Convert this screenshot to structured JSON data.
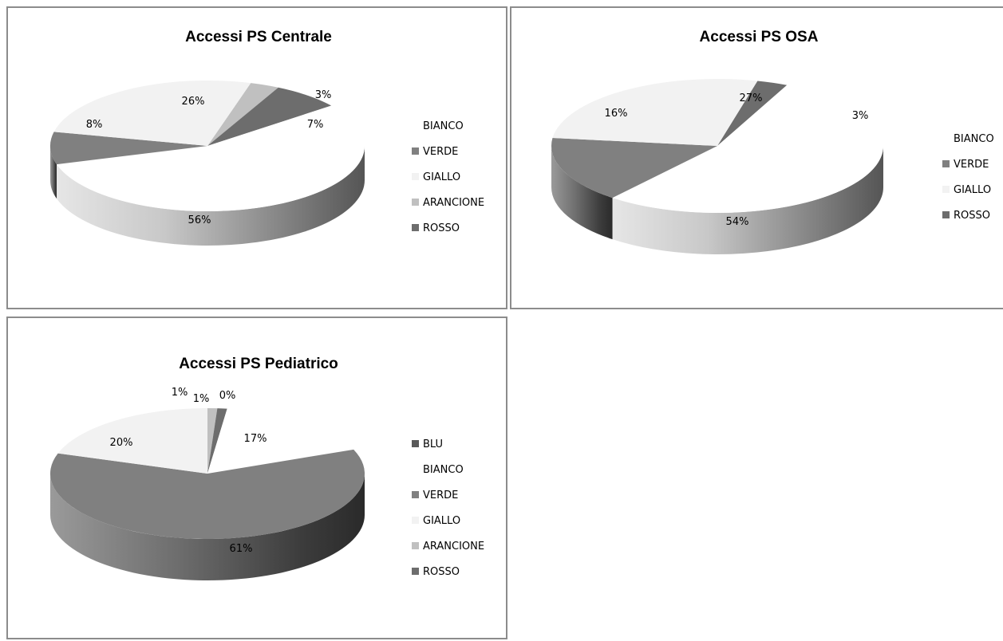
{
  "chart_data": [
    {
      "type": "pie",
      "title": "Accessi PS Centrale",
      "categories": [
        "BIANCO",
        "VERDE",
        "GIALLO",
        "ARANCIONE",
        "ROSSO"
      ],
      "values": [
        0,
        8,
        26,
        3,
        7
      ],
      "labels": [
        "",
        "8%",
        "26%",
        "3%",
        "7%"
      ],
      "remainder": {
        "value": 56,
        "label": "56%"
      },
      "legend_position": "right",
      "colors": {
        "BIANCO": "#ffffff",
        "VERDE": "#808080",
        "GIALLO": "#f2f2f2",
        "ARANCIONE": "#c0c0c0",
        "ROSSO": "#6d6d6d"
      }
    },
    {
      "type": "pie",
      "title": "Accessi PS OSA",
      "categories": [
        "BIANCO",
        "VERDE",
        "GIALLO",
        "ROSSO"
      ],
      "values": [
        0,
        16,
        27,
        3
      ],
      "labels": [
        "",
        "16%",
        "27%",
        "3%"
      ],
      "remainder": {
        "value": 54,
        "label": "54%"
      },
      "legend_position": "right",
      "colors": {
        "BIANCO": "#ffffff",
        "VERDE": "#808080",
        "GIALLO": "#f2f2f2",
        "ROSSO": "#6d6d6d"
      }
    },
    {
      "type": "pie",
      "title": "Accessi PS Pediatrico",
      "categories": [
        "BLU",
        "BIANCO",
        "VERDE",
        "GIALLO",
        "ARANCIONE",
        "ROSSO"
      ],
      "values": [
        0,
        17,
        61,
        20,
        1,
        1
      ],
      "labels": [
        "0%",
        "17%",
        "61%",
        "20%",
        "1%",
        "1%"
      ],
      "legend_position": "right",
      "colors": {
        "BLU": "#595959",
        "BIANCO": "#ffffff",
        "VERDE": "#808080",
        "GIALLO": "#f2f2f2",
        "ARANCIONE": "#c0c0c0",
        "ROSSO": "#6d6d6d"
      }
    }
  ]
}
